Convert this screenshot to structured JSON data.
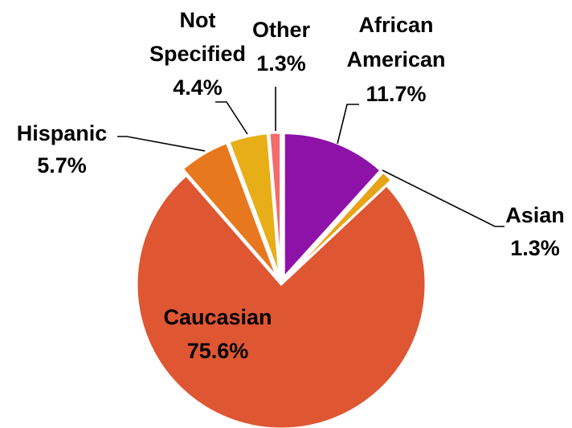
{
  "chart_data": {
    "type": "pie",
    "title": "",
    "start_angle_deg": 0,
    "direction": "clockwise",
    "slices": [
      {
        "name": "African American",
        "value": 11.7,
        "label_lines": [
          "African",
          "American",
          "11.7%"
        ],
        "color": "#8e12a8",
        "exploded": true
      },
      {
        "name": "Asian",
        "value": 1.3,
        "label_lines": [
          "Asian",
          "1.3%"
        ],
        "color": "#e8a317",
        "exploded": true
      },
      {
        "name": "Caucasian",
        "value": 75.6,
        "label_lines": [
          "Caucasian",
          "75.6%"
        ],
        "color": "#df5633",
        "exploded": false
      },
      {
        "name": "Hispanic",
        "value": 5.7,
        "label_lines": [
          "Hispanic",
          "5.7%"
        ],
        "color": "#e8781e",
        "exploded": true
      },
      {
        "name": "Not Specified",
        "value": 4.4,
        "label_lines": [
          "Not",
          "Specified",
          "4.4%"
        ],
        "color": "#e8ae17",
        "exploded": true
      },
      {
        "name": "Other",
        "value": 1.3,
        "label_lines": [
          "Other",
          "1.3%"
        ],
        "color": "#f46b6b",
        "exploded": true
      }
    ]
  }
}
